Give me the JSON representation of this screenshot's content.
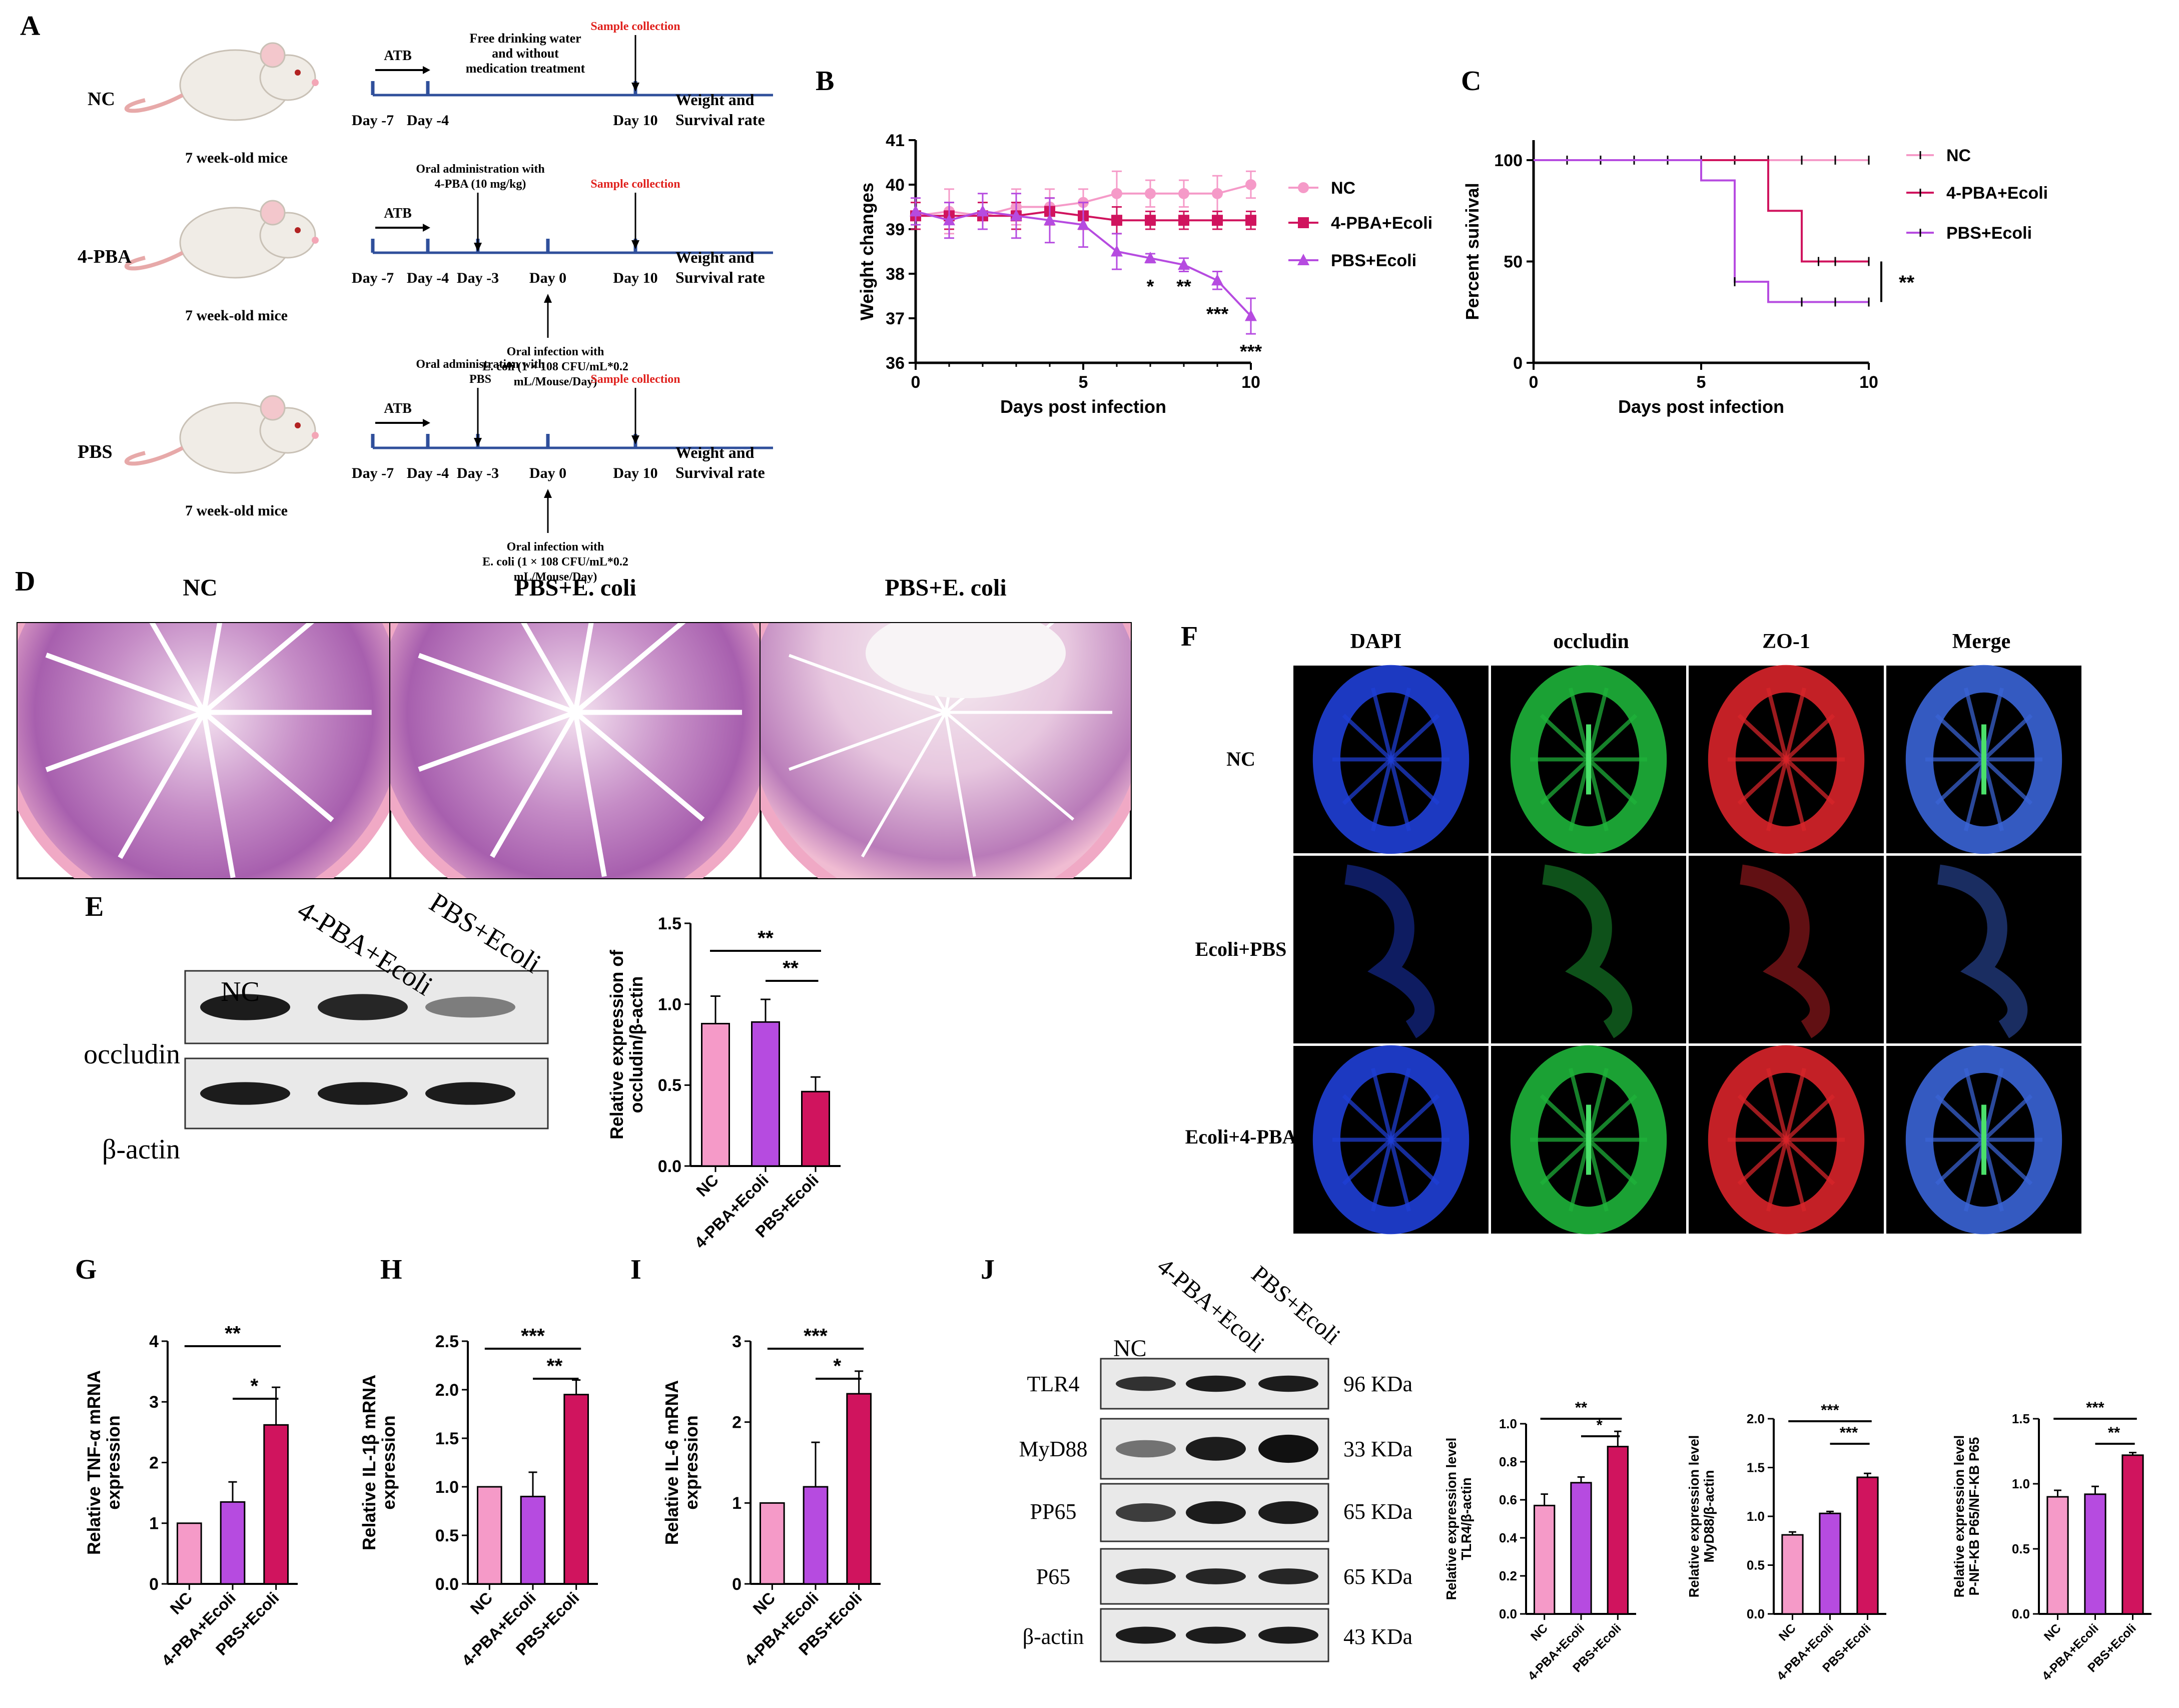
{
  "colors": {
    "nc": "#F59AC8",
    "pba": "#B64BE0",
    "pbs": "#D0145E",
    "timeline": "#2F4F9B",
    "red_text": "#E0201C",
    "sig_line": "#000000"
  },
  "panel_letters": [
    "A",
    "B",
    "C",
    "D",
    "E",
    "F",
    "G",
    "H",
    "I",
    "J"
  ],
  "panelA": {
    "rows": [
      {
        "group": "NC",
        "mouse_caption": "7 week-old mice",
        "label_atb": "ATB",
        "note_top": "Free drinking water and without medication treatment",
        "sample": "Sample collection",
        "days": [
          "Day -7",
          "Day -4",
          "Day 10"
        ],
        "outcome_1": "Weight and",
        "outcome_2": "Survival rate"
      },
      {
        "group": "4-PBA",
        "mouse_caption": "7 week-old mice",
        "label_atb": "ATB",
        "note_top": "Oral administration with 4-PBA (10 mg/kg)",
        "sample": "Sample collection",
        "days": [
          "Day -7",
          "Day -4",
          "Day -3",
          "Day 0",
          "Day 10"
        ],
        "outcome_1": "Weight and",
        "outcome_2": "Survival rate",
        "infection_1": "Oral infection with",
        "infection_2": "E. coli (1 × 108 CFU/mL*0.2",
        "infection_3": "mL/Mouse/Day)"
      },
      {
        "group": "PBS",
        "mouse_caption": "7 week-old mice",
        "label_atb": "ATB",
        "note_top": "Oral administration with PBS",
        "sample": "Sample collection",
        "days": [
          "Day -7",
          "Day -4",
          "Day -3",
          "Day 0",
          "Day 10"
        ],
        "outcome_1": "Weight and",
        "outcome_2": "Survival rate",
        "infection_1": "Oral infection with",
        "infection_2": "E. coli (1 × 108 CFU/mL*0.2",
        "infection_3": "mL/Mouse/Day)"
      }
    ]
  },
  "panelD": {
    "titles": [
      "NC",
      "PBS+E. coli",
      "PBS+E. coli"
    ]
  },
  "panelF": {
    "columns": [
      "DAPI",
      "occludin",
      "ZO-1",
      "Merge"
    ],
    "rows": [
      "NC",
      "Ecoli+PBS",
      "Ecoli+4-PBA"
    ]
  },
  "panelE_blot": {
    "lanes": [
      "NC",
      "4-PBA+Ecoli",
      "PBS+Ecoli"
    ],
    "rows": [
      "occludin",
      "β-actin"
    ]
  },
  "panelJ_blot": {
    "lanes": [
      "NC",
      "4-PBA+Ecoli",
      "PBS+Ecoli"
    ],
    "rows": [
      "TLR4",
      "MyD88",
      "PP65",
      "P65",
      "β-actin"
    ],
    "sizes": [
      "96 KDa",
      "33 KDa",
      "65 KDa",
      "65 KDa",
      "43 KDa"
    ]
  },
  "chart_data": [
    {
      "panel": "B",
      "type": "line",
      "xlabel": "Days post infection",
      "ylabel": "Weight changes",
      "xlim": [
        0,
        10
      ],
      "ylim": [
        36,
        41
      ],
      "xticks": [
        0,
        5,
        10
      ],
      "yticks": [
        36,
        37,
        38,
        39,
        40,
        41
      ],
      "legend": "right",
      "x": [
        0,
        1,
        2,
        3,
        4,
        5,
        6,
        7,
        8,
        9,
        10
      ],
      "series": [
        {
          "name": "NC",
          "values": [
            39.3,
            39.4,
            39.3,
            39.5,
            39.5,
            39.6,
            39.8,
            39.8,
            39.8,
            39.8,
            40.0
          ],
          "err": [
            0.3,
            0.5,
            0.3,
            0.4,
            0.4,
            0.3,
            0.5,
            0.3,
            0.3,
            0.4,
            0.3
          ]
        },
        {
          "name": "4-PBA+Ecoli",
          "values": [
            39.3,
            39.3,
            39.3,
            39.3,
            39.4,
            39.3,
            39.2,
            39.2,
            39.2,
            39.2,
            39.2
          ],
          "err": [
            0.3,
            0.3,
            0.3,
            0.3,
            0.3,
            0.3,
            0.3,
            0.2,
            0.2,
            0.2,
            0.2
          ]
        },
        {
          "name": "PBS+Ecoli",
          "values": [
            39.4,
            39.2,
            39.4,
            39.3,
            39.2,
            39.1,
            38.5,
            38.35,
            38.2,
            37.85,
            37.05
          ],
          "err": [
            0.3,
            0.4,
            0.4,
            0.5,
            0.5,
            0.5,
            0.4,
            0.1,
            0.15,
            0.2,
            0.4
          ]
        }
      ],
      "annotations": [
        {
          "x": 7,
          "text": "*"
        },
        {
          "x": 8,
          "text": "**"
        },
        {
          "x": 9,
          "text": "***"
        },
        {
          "x": 10,
          "text": "***"
        }
      ]
    },
    {
      "panel": "C",
      "type": "line",
      "xlabel": "Days post infection",
      "ylabel": "Percent suivival",
      "xlim": [
        0,
        10
      ],
      "ylim": [
        0,
        100
      ],
      "xticks": [
        0,
        5,
        10
      ],
      "yticks": [
        0,
        50,
        100
      ],
      "legend": "right",
      "series": [
        {
          "name": "NC",
          "steps": [
            [
              0,
              100
            ],
            [
              10,
              100
            ]
          ],
          "censor": [
            1,
            2,
            3,
            4,
            5,
            6,
            7,
            8,
            9,
            10
          ]
        },
        {
          "name": "4-PBA+Ecoli",
          "steps": [
            [
              0,
              100
            ],
            [
              7,
              100
            ],
            [
              7,
              75
            ],
            [
              8,
              75
            ],
            [
              8,
              50
            ],
            [
              10,
              50
            ]
          ],
          "censor": [
            8.5,
            9,
            10
          ]
        },
        {
          "name": "PBS+Ecoli",
          "steps": [
            [
              0,
              100
            ],
            [
              5,
              100
            ],
            [
              5,
              90
            ],
            [
              6,
              90
            ],
            [
              6,
              40
            ],
            [
              7,
              40
            ],
            [
              7,
              30
            ],
            [
              10,
              30
            ]
          ],
          "censor": [
            6,
            8,
            9,
            10
          ]
        }
      ],
      "annotations": [
        {
          "text": "**"
        }
      ]
    },
    {
      "panel": "E",
      "type": "bar",
      "ylabel": "Relative expression of occludin/β-actin",
      "categories": [
        "NC",
        "4-PBA+Ecoli",
        "PBS+Ecoli"
      ],
      "values": [
        0.88,
        0.89,
        0.46
      ],
      "err": [
        0.17,
        0.14,
        0.09
      ],
      "ylim": [
        0,
        1.5
      ],
      "yticks": [
        0.0,
        0.5,
        1.0,
        1.5
      ],
      "significance": [
        {
          "from": 0,
          "to": 2,
          "text": "**"
        },
        {
          "from": 1,
          "to": 2,
          "text": "**"
        }
      ]
    },
    {
      "panel": "G",
      "type": "bar",
      "ylabel": "Relative TNF-α mRNA expression",
      "categories": [
        "NC",
        "4-PBA+Ecoli",
        "PBS+Ecoli"
      ],
      "values": [
        1.0,
        1.35,
        2.62
      ],
      "err": [
        0.0,
        0.33,
        0.62
      ],
      "ylim": [
        0,
        4
      ],
      "yticks": [
        0,
        1,
        2,
        3,
        4
      ],
      "significance": [
        {
          "from": 0,
          "to": 2,
          "text": "**"
        },
        {
          "from": 1,
          "to": 2,
          "text": "*"
        }
      ]
    },
    {
      "panel": "H",
      "type": "bar",
      "ylabel": "Relative IL-1β mRNA expression",
      "categories": [
        "NC",
        "4-PBA+Ecoli",
        "PBS+Ecoli"
      ],
      "values": [
        1.0,
        0.9,
        1.95
      ],
      "err": [
        0.0,
        0.25,
        0.15
      ],
      "ylim": [
        0,
        2.5
      ],
      "yticks": [
        0.0,
        0.5,
        1.0,
        1.5,
        2.0,
        2.5
      ],
      "significance": [
        {
          "from": 0,
          "to": 2,
          "text": "***"
        },
        {
          "from": 1,
          "to": 2,
          "text": "**"
        }
      ]
    },
    {
      "panel": "I",
      "type": "bar",
      "ylabel": "Relative IL-6 mRNA expression",
      "categories": [
        "NC",
        "4-PBA+Ecoli",
        "PBS+Ecoli"
      ],
      "values": [
        1.0,
        1.2,
        2.35
      ],
      "err": [
        0.0,
        0.55,
        0.28
      ],
      "ylim": [
        0,
        3
      ],
      "yticks": [
        0,
        1,
        2,
        3
      ],
      "significance": [
        {
          "from": 0,
          "to": 2,
          "text": "***"
        },
        {
          "from": 1,
          "to": 2,
          "text": "*"
        }
      ]
    },
    {
      "panel": "J1",
      "type": "bar",
      "ylabel": "Relative expression level TLR4/β-actin",
      "categories": [
        "NC",
        "4-PBA+Ecoli",
        "PBS+Ecoli"
      ],
      "values": [
        0.57,
        0.69,
        0.88
      ],
      "err": [
        0.06,
        0.03,
        0.08
      ],
      "ylim": [
        0,
        1.0
      ],
      "yticks": [
        0.0,
        0.2,
        0.4,
        0.6,
        0.8,
        1.0
      ],
      "significance": [
        {
          "from": 0,
          "to": 2,
          "text": "**"
        },
        {
          "from": 1,
          "to": 2,
          "text": "*"
        }
      ]
    },
    {
      "panel": "J2",
      "type": "bar",
      "ylabel": "Relative expression level MyD88/β-actin",
      "categories": [
        "NC",
        "4-PBA+Ecoli",
        "PBS+Ecoli"
      ],
      "values": [
        0.81,
        1.03,
        1.4
      ],
      "err": [
        0.03,
        0.02,
        0.04
      ],
      "ylim": [
        0,
        2.0
      ],
      "yticks": [
        0.0,
        0.5,
        1.0,
        1.5,
        2.0
      ],
      "significance": [
        {
          "from": 0,
          "to": 2,
          "text": "***"
        },
        {
          "from": 1,
          "to": 2,
          "text": "***"
        }
      ]
    },
    {
      "panel": "J3",
      "type": "bar",
      "ylabel": "Relative expression level P-NF-KB P65/NF-KB P65",
      "categories": [
        "NC",
        "4-PBA+Ecoli",
        "PBS+Ecoli"
      ],
      "values": [
        0.9,
        0.92,
        1.22
      ],
      "err": [
        0.05,
        0.06,
        0.02
      ],
      "ylim": [
        0,
        1.5
      ],
      "yticks": [
        0.0,
        0.5,
        1.0,
        1.5
      ],
      "significance": [
        {
          "from": 0,
          "to": 2,
          "text": "***"
        },
        {
          "from": 1,
          "to": 2,
          "text": "**"
        }
      ]
    }
  ]
}
